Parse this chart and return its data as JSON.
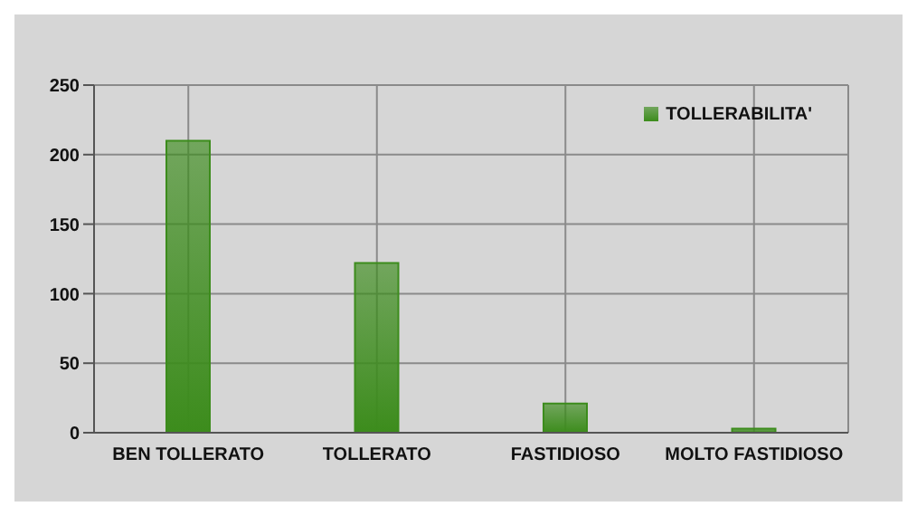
{
  "chart_data": {
    "type": "bar",
    "categories": [
      "BEN TOLLERATO",
      "TOLLERATO",
      "FASTIDIOSO",
      "MOLTO FASTIDIOSO"
    ],
    "series": [
      {
        "name": "TOLLERABILITA'",
        "color": "#3c8c1c",
        "values": [
          210,
          122,
          21,
          3
        ]
      }
    ],
    "ylim": [
      0,
      250
    ],
    "yticks": [
      0,
      50,
      100,
      150,
      200,
      250
    ],
    "grid": true,
    "legend": "top right"
  }
}
